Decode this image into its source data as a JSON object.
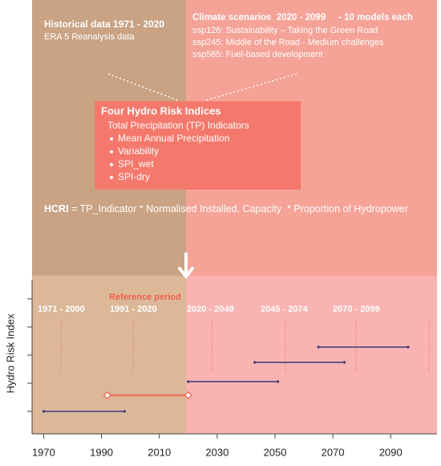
{
  "historical": {
    "title": "Historical data 1971 - 2020",
    "subtitle": "ERA 5 Reanalysis data"
  },
  "scenarios": {
    "title": "Climate scenarios  2020 - 2099     - 10 models each",
    "items": [
      "ssp126: Sustainability – Taking the Green Road",
      "ssp245: Middle of the Road - Medium challenges",
      "ssp585: Fuel-based development"
    ]
  },
  "indices": {
    "title": "Four Hydro Risk Indices",
    "subtitle": "Total Precipitation (TP) Indicators",
    "items": [
      "Mean Annual Precipitation",
      "Variability",
      "SPI_wet",
      "SPI-dry"
    ]
  },
  "formula": {
    "term": "HCRI",
    "expression": " = TP_Indicator * Normalised Installed. Capacity  * Proportion of Hydropower"
  },
  "timeline": {
    "y_label": "Hydro Risk Index",
    "xlim": [
      1966,
      2106
    ],
    "xticks": [
      1970,
      1990,
      2010,
      2030,
      2050,
      2070,
      2090
    ],
    "reference_label": "Reference period",
    "periods": [
      {
        "label": "1971 - 2000",
        "start": 1970,
        "end": 1998,
        "color": "#3b3b7a"
      },
      {
        "label": "1991 - 2020",
        "start": 1992,
        "end": 2020,
        "color": "#f0705e"
      },
      {
        "label": "2020 - 2049",
        "start": 2020,
        "end": 2051,
        "color": "#3b3b7a"
      },
      {
        "label": "2045 - 2074",
        "start": 2043,
        "end": 2074,
        "color": "#3b3b7a"
      },
      {
        "label": "2070 - 2099",
        "start": 2065,
        "end": 2096,
        "color": "#3b3b7a"
      }
    ]
  }
}
